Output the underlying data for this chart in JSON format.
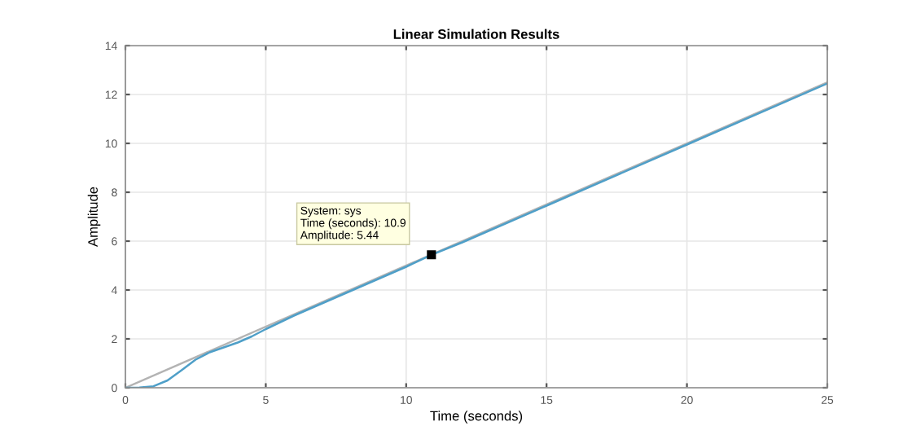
{
  "chart_data": {
    "type": "line",
    "title": "Linear Simulation Results",
    "xlabel": "Time (seconds)",
    "ylabel": "Amplitude",
    "series": [
      {
        "color": "#b3b3b3",
        "x": [
          0,
          25
        ],
        "values": [
          0,
          12.5
        ]
      },
      {
        "color": "#4f9fc8",
        "x": [
          0,
          0.5,
          1,
          1.5,
          2,
          2.5,
          3,
          3.5,
          4,
          4.5,
          5,
          6,
          7,
          8,
          9,
          10,
          10.9,
          12,
          15,
          20,
          25
        ],
        "values": [
          0,
          0.01,
          0.06,
          0.3,
          0.72,
          1.15,
          1.45,
          1.65,
          1.85,
          2.1,
          2.4,
          2.95,
          3.45,
          3.95,
          4.45,
          4.95,
          5.44,
          5.95,
          7.45,
          9.95,
          12.45
        ]
      }
    ],
    "xlim": [
      0,
      25
    ],
    "ylim": [
      0,
      14
    ],
    "xticks": [
      0,
      5,
      10,
      15,
      20,
      25
    ],
    "yticks": [
      0,
      2,
      4,
      6,
      8,
      10,
      12,
      14
    ],
    "grid": true,
    "annotations": [
      {
        "text": "System: sys\nTime (seconds): 10.9\nAmplitude: 5.44",
        "x": 10.9,
        "y": 5.44
      }
    ]
  }
}
